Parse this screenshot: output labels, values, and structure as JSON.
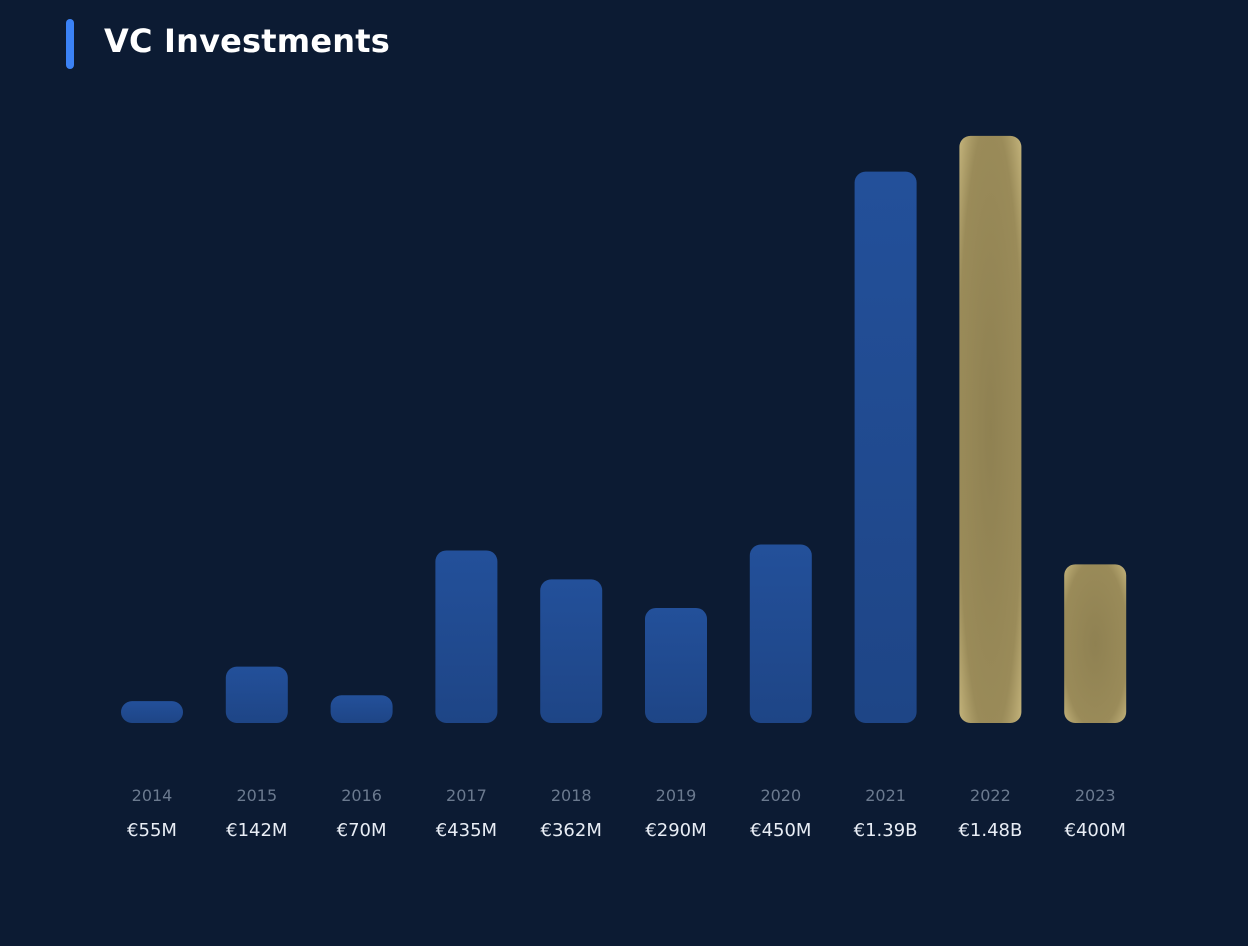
{
  "title": "VC Investments",
  "colors": {
    "background": "#0c1b33",
    "accent": "#3b82f6",
    "bar": "#224b90",
    "highlight": "#a8975c"
  },
  "chart_data": {
    "type": "bar",
    "title": "VC Investments",
    "xlabel": "",
    "ylabel": "",
    "categories": [
      "2014",
      "2015",
      "2016",
      "2017",
      "2018",
      "2019",
      "2020",
      "2021",
      "2022",
      "2023"
    ],
    "values": [
      55,
      142,
      70,
      435,
      362,
      290,
      450,
      1390,
      1480,
      400
    ],
    "value_labels": [
      "€55M",
      "€142M",
      "€70M",
      "€435M",
      "€362M",
      "€290M",
      "€450M",
      "€1.39B",
      "€1.48B",
      "€400M"
    ],
    "highlighted": [
      "2022",
      "2023"
    ],
    "unit": "€M",
    "ylim": [
      0,
      1500
    ],
    "grid": true,
    "legend": "none"
  }
}
